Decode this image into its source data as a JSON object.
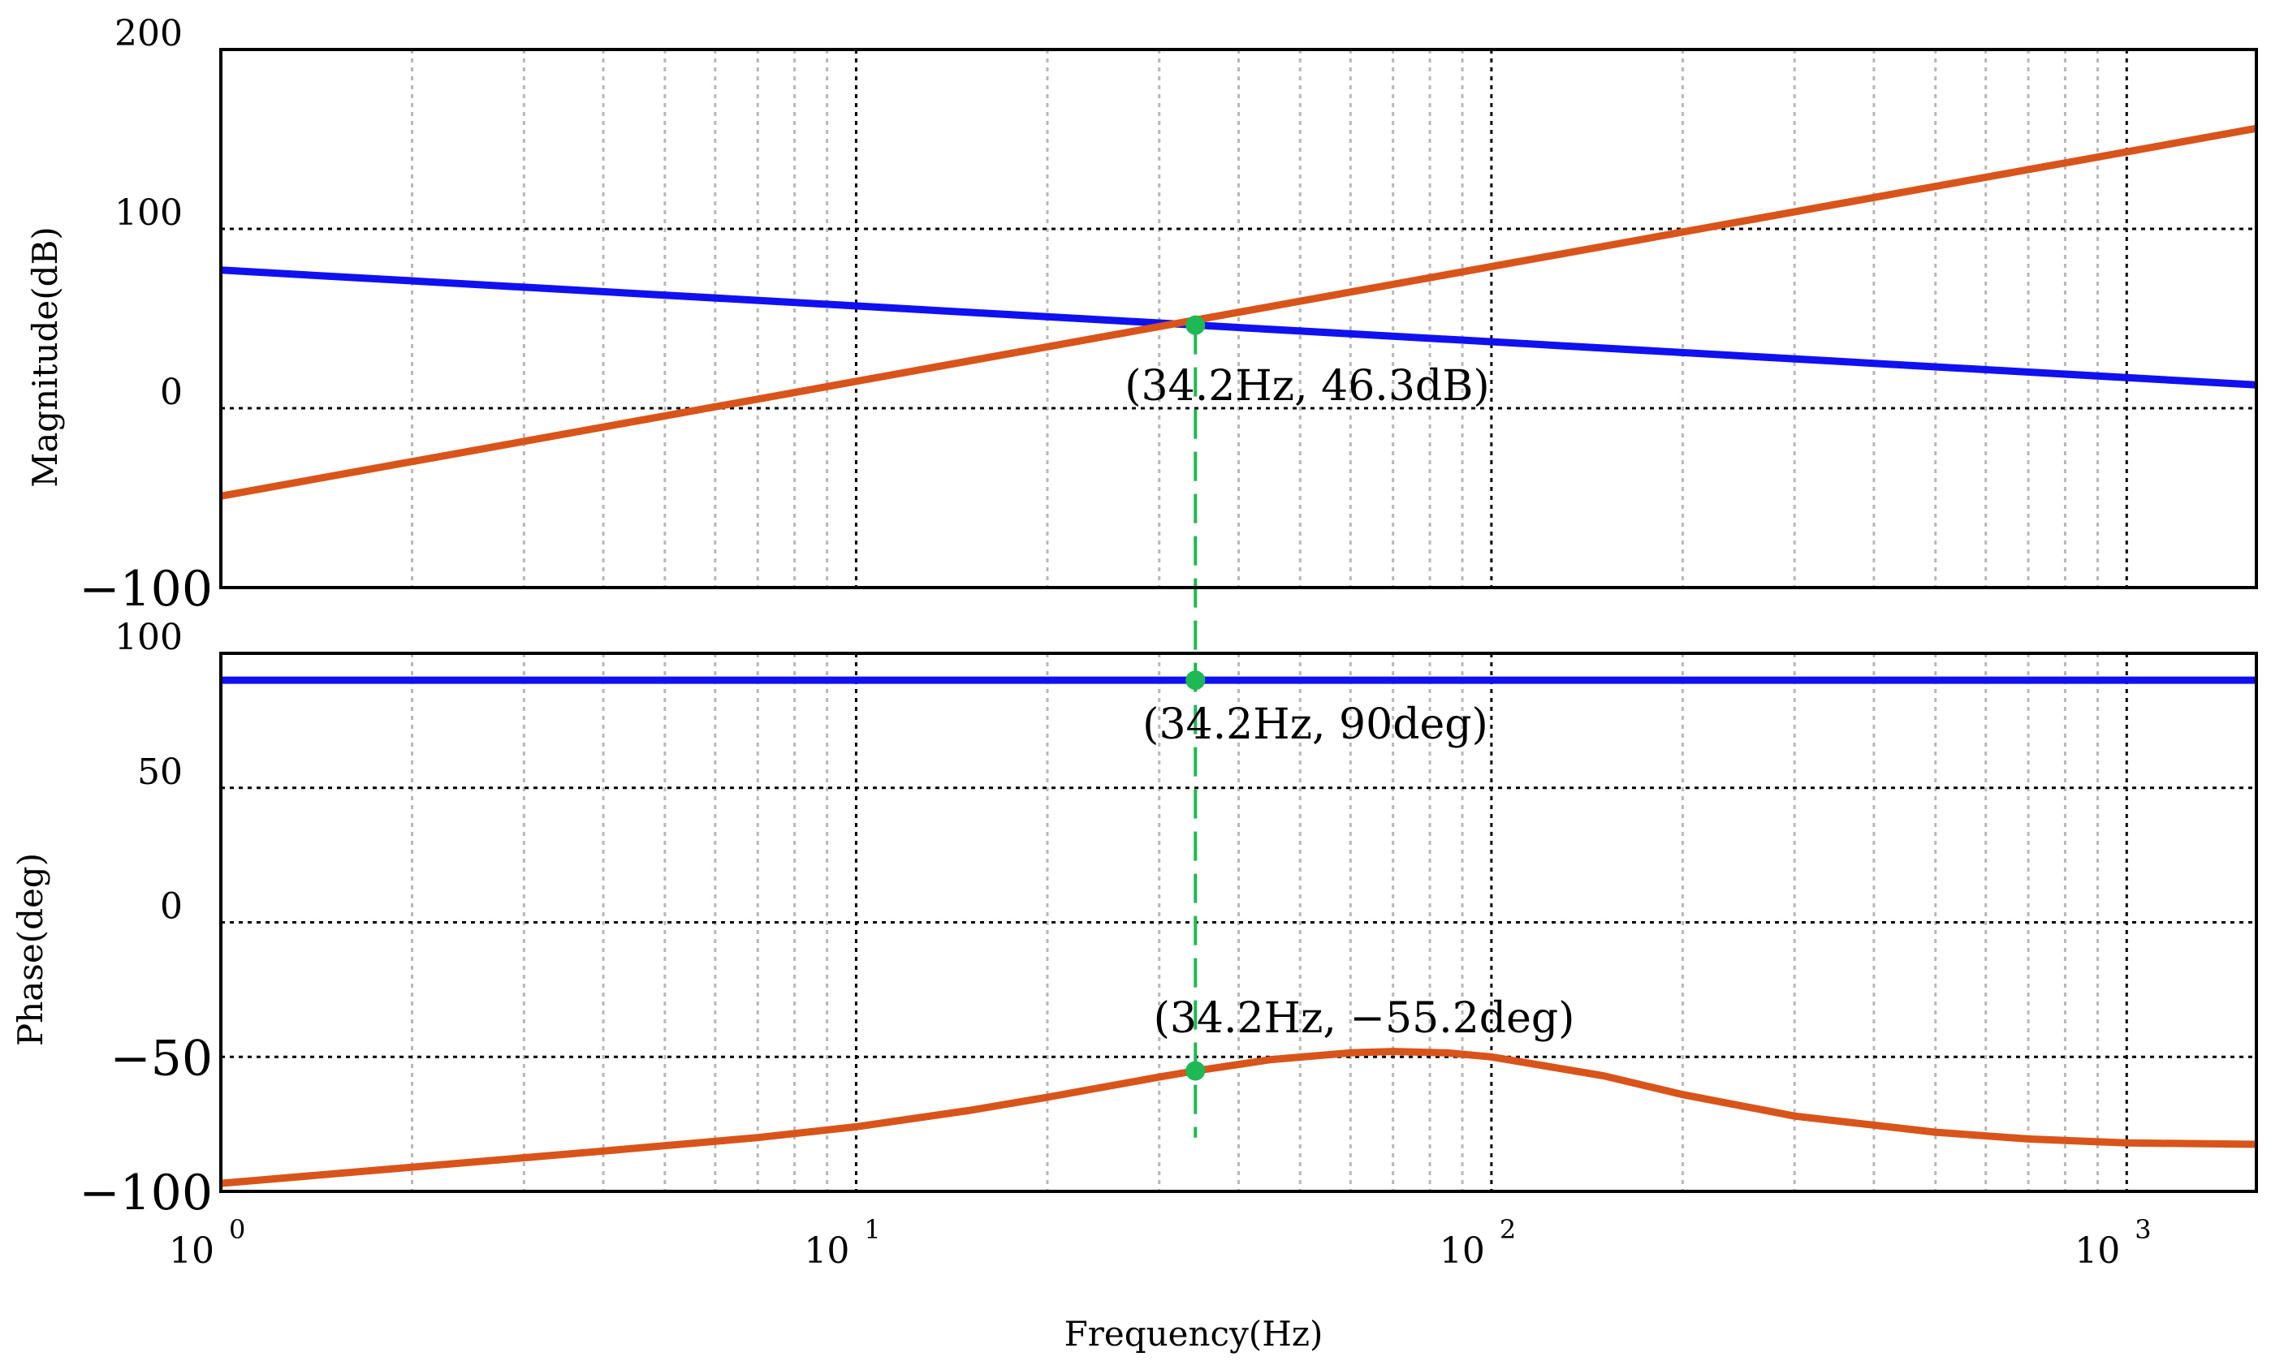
{
  "chart_data": [
    {
      "type": "line",
      "name": "magnitude",
      "ylabel": "Magnitude(dB)",
      "ylim": [
        -100,
        200
      ],
      "yticks": [
        {
          "value": 200,
          "label": "200",
          "big": false
        },
        {
          "value": 100,
          "label": "100",
          "big": false
        },
        {
          "value": 0,
          "label": "0",
          "big": false
        },
        {
          "value": -100,
          "label": "−100",
          "big": true
        }
      ],
      "xscale": "log",
      "xlim": [
        1,
        1600
      ],
      "series": [
        {
          "name": "blue",
          "color": "#1010f0",
          "x": [
            1,
            1600
          ],
          "y": [
            77,
            13
          ]
        },
        {
          "name": "orange",
          "color": "#d9541a",
          "x": [
            1,
            1600
          ],
          "y": [
            -49,
            156
          ]
        }
      ],
      "marker": {
        "x": 34.2,
        "y": 46.3,
        "color": "#1db954"
      },
      "annotation": "(34.2Hz, 46.3dB)"
    },
    {
      "type": "line",
      "name": "phase",
      "ylabel": "Phase(deg)",
      "ylim": [
        -100,
        100
      ],
      "yticks": [
        {
          "value": 100,
          "label": "100",
          "big": false
        },
        {
          "value": 50,
          "label": "50",
          "big": false
        },
        {
          "value": 0,
          "label": "0",
          "big": false
        },
        {
          "value": -50,
          "label": "−50",
          "big": true
        },
        {
          "value": -100,
          "label": "−100",
          "big": true
        }
      ],
      "xscale": "log",
      "xlim": [
        1,
        1600
      ],
      "xlabel": "Frequency(Hz)",
      "xticks": [
        {
          "value": 1,
          "base": "10",
          "exp": "0"
        },
        {
          "value": 10,
          "base": "10",
          "exp": "1"
        },
        {
          "value": 100,
          "base": "10",
          "exp": "2"
        },
        {
          "value": 1000,
          "base": "10",
          "exp": "3"
        }
      ],
      "series": [
        {
          "name": "blue",
          "color": "#1010f0",
          "x": [
            1,
            1600
          ],
          "y": [
            90,
            90
          ]
        },
        {
          "name": "orange",
          "color": "#d9541a",
          "x": [
            1,
            2,
            4,
            7,
            10,
            15,
            20,
            30,
            34.2,
            45,
            60,
            70,
            85,
            100,
            150,
            200,
            300,
            500,
            700,
            1000,
            1600
          ],
          "y": [
            -97,
            -91,
            -85,
            -80,
            -76,
            -70,
            -65,
            -57.5,
            -55.2,
            -51,
            -48.5,
            -48,
            -48.5,
            -50,
            -57,
            -64,
            -72,
            -78,
            -80.5,
            -82,
            -82.5
          ]
        }
      ],
      "markers": [
        {
          "x": 34.2,
          "y": 90,
          "color": "#1db954"
        },
        {
          "x": 34.2,
          "y": -55.2,
          "color": "#1db954"
        }
      ],
      "annotations": [
        {
          "text": "(34.2Hz, 90deg)"
        },
        {
          "text": "(34.2Hz, −55.2deg)"
        }
      ]
    }
  ],
  "colors": {
    "crosshair": "#1db954"
  }
}
